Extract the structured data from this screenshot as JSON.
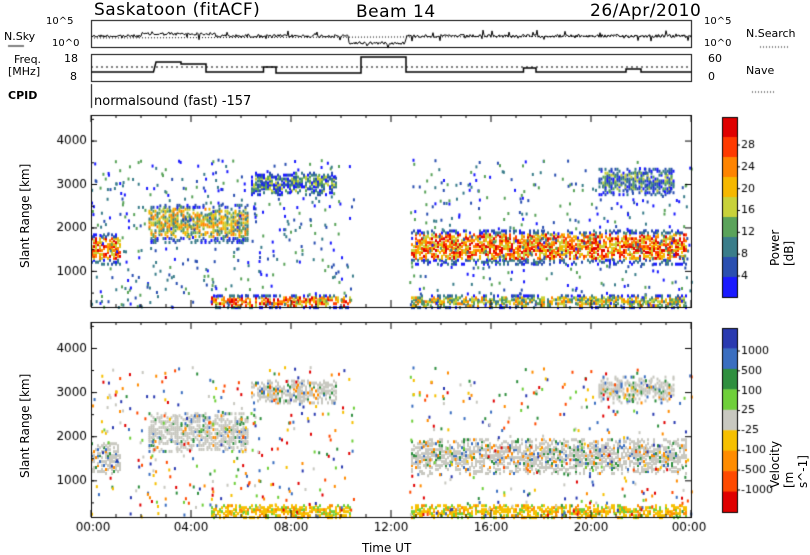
{
  "header": {
    "station": "Saskatoon (fitACF)",
    "beam": "Beam 14",
    "date": "26/Apr/2010"
  },
  "noise_panel": {
    "left_label": "N.Sky",
    "right_label": "N.Search",
    "left_ticks": [
      "10^5",
      "10^0"
    ],
    "right_ticks": [
      "10^5",
      "10^0"
    ]
  },
  "freq_panel": {
    "left_label_1": "Freq.",
    "left_label_2": "[MHz]",
    "right_label": "Nave",
    "left_ticks": [
      "18",
      "8"
    ],
    "right_ticks": [
      "60",
      "0"
    ]
  },
  "cpid_panel": {
    "label": "CPID",
    "program": "normalsound (fast) -157"
  },
  "colors": {
    "power_scale": [
      "#1a1aff",
      "#2a4fb0",
      "#3a7d8a",
      "#5aa35a",
      "#c8d23a",
      "#f6b800",
      "#ff8400",
      "#ff3a00",
      "#e00000"
    ],
    "velocity_scale": [
      "#2a3ab0",
      "#3a6ec0",
      "#2f8f3f",
      "#6fcf3a",
      "#c8c8c0",
      "#f6c000",
      "#ff8c00",
      "#ff4a00",
      "#e00000"
    ]
  },
  "chart_data": [
    {
      "type": "heatmap",
      "name": "power",
      "xlabel": "Time UT",
      "ylabel": "Slant Range [km]",
      "x_ticks": [
        "00:00",
        "04:00",
        "08:00",
        "12:00",
        "16:00",
        "20:00",
        "00:00"
      ],
      "x_range_hours": [
        0,
        24
      ],
      "y_ticks": [
        1000,
        2000,
        3000,
        4000
      ],
      "ylim": [
        180,
        4600
      ],
      "colorbar": {
        "label": "Power [dB]",
        "ticks": [
          4,
          8,
          12,
          16,
          20,
          24,
          28
        ],
        "range": [
          0,
          30
        ]
      },
      "echo_regions": [
        {
          "t0": 0.0,
          "t1": 1.2,
          "r0": 1200,
          "r1": 1900,
          "level": "high"
        },
        {
          "t0": 2.3,
          "t1": 6.3,
          "r0": 1700,
          "r1": 2600,
          "level": "medium"
        },
        {
          "t0": 4.8,
          "t1": 10.4,
          "r0": 200,
          "r1": 500,
          "level": "high"
        },
        {
          "t0": 6.4,
          "t1": 9.8,
          "r0": 2800,
          "r1": 3300,
          "level": "low"
        },
        {
          "t0": 12.8,
          "t1": 23.8,
          "r0": 1200,
          "r1": 2000,
          "level": "high"
        },
        {
          "t0": 12.8,
          "t1": 23.8,
          "r0": 200,
          "r1": 500,
          "level": "medium"
        },
        {
          "t0": 20.3,
          "t1": 23.3,
          "r0": 2800,
          "r1": 3400,
          "level": "low"
        }
      ],
      "data_gap_hours": [
        10.5,
        12.7
      ]
    },
    {
      "type": "heatmap",
      "name": "velocity",
      "xlabel": "Time UT",
      "ylabel": "Slant Range [km]",
      "x_ticks": [
        "00:00",
        "04:00",
        "08:00",
        "12:00",
        "16:00",
        "20:00",
        "00:00"
      ],
      "x_range_hours": [
        0,
        24
      ],
      "y_ticks": [
        1000,
        2000,
        3000,
        4000
      ],
      "ylim": [
        180,
        4600
      ],
      "colorbar": {
        "label": "Velocity [m s^-1]",
        "ticks": [
          1000,
          500,
          100,
          25,
          -25,
          -100,
          -500,
          -1000
        ]
      },
      "data_gap_hours": [
        10.5,
        12.7
      ]
    }
  ]
}
